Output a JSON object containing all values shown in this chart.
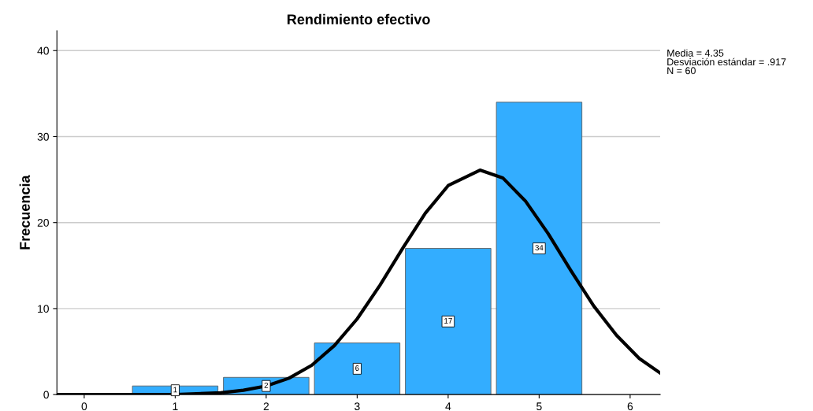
{
  "chart_data": {
    "type": "histogram",
    "title": "Rendimiento efectivo",
    "ylabel": "Frecuencia",
    "xlim": [
      -0.3,
      6.33
    ],
    "ylim": [
      0,
      42.3
    ],
    "xticks": [
      0,
      1,
      2,
      3,
      4,
      5,
      6
    ],
    "yticks": [
      0,
      10,
      20,
      30,
      40
    ],
    "grid": "y",
    "annotations": [
      "Media = 4.35\nDesviación estándar = .917\nN = 60"
    ],
    "series": [
      {
        "bins": [
          0.5,
          1.5,
          2.5,
          3.5,
          4.5,
          5.5
        ],
        "values": [
          1,
          2,
          6,
          17,
          34
        ],
        "value_labels": [
          "1",
          "2",
          "6",
          "17",
          "34"
        ],
        "color": "#33adff"
      },
      {
        "type": "line",
        "color": "#000000",
        "x": [
          -0.3,
          0.5,
          1,
          1.5,
          1.75,
          2,
          2.25,
          2.5,
          2.75,
          3,
          3.25,
          3.5,
          3.75,
          4,
          4.35,
          4.6,
          4.85,
          5.1,
          5.35,
          5.6,
          5.85,
          6.1,
          6.33
        ],
        "values": [
          0,
          0,
          0,
          0.2,
          0.5,
          1,
          1.9,
          3.4,
          5.7,
          8.8,
          12.7,
          17,
          21.1,
          24.3,
          26.1,
          25.2,
          22.5,
          18.7,
          14.4,
          10.3,
          6.9,
          4.2,
          2.5
        ]
      }
    ]
  }
}
